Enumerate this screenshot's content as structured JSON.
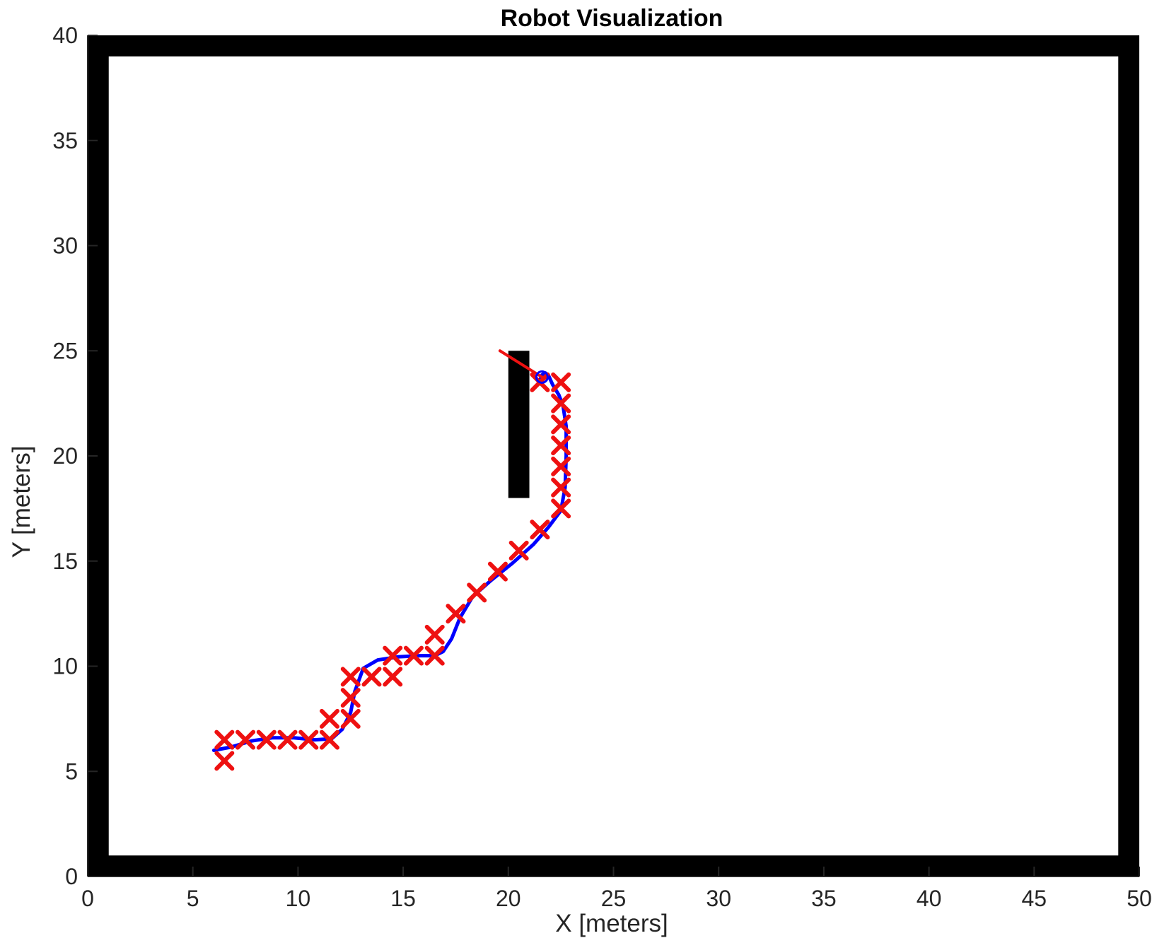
{
  "chart_data": {
    "type": "scatter",
    "title": "Robot Visualization",
    "xlabel": "X [meters]",
    "ylabel": "Y [meters]",
    "xlim": [
      0,
      50
    ],
    "ylim": [
      0,
      40
    ],
    "xticks": [
      0,
      5,
      10,
      15,
      20,
      25,
      30,
      35,
      40,
      45,
      50
    ],
    "yticks": [
      0,
      5,
      10,
      15,
      20,
      25,
      30,
      35,
      40
    ],
    "grid": false,
    "legend": "none",
    "colors": {
      "walls": "#000000",
      "path": "#0000ff",
      "markers": "#ee1111",
      "heading": "#ee1111",
      "axis": "#262626"
    },
    "walls": [
      {
        "name": "wall-top",
        "x": [
          0,
          50
        ],
        "y": [
          39,
          40
        ]
      },
      {
        "name": "wall-bottom",
        "x": [
          0,
          50
        ],
        "y": [
          0,
          1
        ]
      },
      {
        "name": "wall-left",
        "x": [
          0,
          1
        ],
        "y": [
          0,
          40
        ]
      },
      {
        "name": "wall-right",
        "x": [
          49,
          50
        ],
        "y": [
          0,
          40
        ]
      },
      {
        "name": "obstacle",
        "x": [
          20,
          21
        ],
        "y": [
          18,
          25
        ]
      }
    ],
    "series": [
      {
        "type": "scatter",
        "marker": "x",
        "x": [
          6.5,
          6.5,
          7.5,
          8.5,
          9.5,
          10.5,
          11.5,
          11.5,
          12.5,
          12.5,
          12.5,
          13.5,
          14.5,
          14.5,
          15.5,
          16.5,
          16.5,
          17.5,
          18.5,
          19.5,
          20.5,
          21.5,
          22.5,
          22.5,
          22.5,
          22.5,
          22.5,
          22.5,
          22.5,
          21.5
        ],
        "y": [
          5.5,
          6.5,
          6.5,
          6.5,
          6.5,
          6.5,
          6.5,
          7.5,
          7.5,
          8.5,
          9.5,
          9.5,
          9.5,
          10.5,
          10.5,
          10.5,
          11.5,
          12.5,
          13.5,
          14.5,
          15.5,
          16.5,
          17.5,
          18.5,
          19.5,
          20.5,
          21.5,
          22.5,
          23.5,
          23.5
        ]
      },
      {
        "type": "line",
        "x": [
          6.0,
          6.8,
          7.8,
          8.8,
          9.8,
          10.8,
          11.6,
          12.1,
          12.5,
          12.7,
          13.1,
          13.8,
          14.8,
          15.8,
          16.5,
          16.9,
          17.3,
          17.7,
          18.3,
          19.2,
          20.2,
          21.2,
          21.9,
          22.5,
          22.7,
          22.75,
          22.75,
          22.6,
          22.4,
          22.1,
          21.9,
          21.75,
          21.6,
          21.5
        ],
        "y": [
          6.0,
          6.15,
          6.45,
          6.6,
          6.6,
          6.5,
          6.55,
          7.0,
          7.8,
          8.8,
          9.9,
          10.3,
          10.45,
          10.5,
          10.5,
          10.7,
          11.3,
          12.3,
          13.3,
          14.1,
          14.9,
          15.8,
          16.6,
          17.4,
          18.5,
          20.0,
          21.4,
          22.4,
          22.9,
          23.4,
          23.85,
          23.95,
          23.85,
          23.6
        ]
      }
    ],
    "robot": {
      "x": 21.6,
      "y": 23.75,
      "heading_line": {
        "x": [
          19.6,
          21.6
        ],
        "y": [
          25.0,
          23.75
        ]
      }
    }
  }
}
